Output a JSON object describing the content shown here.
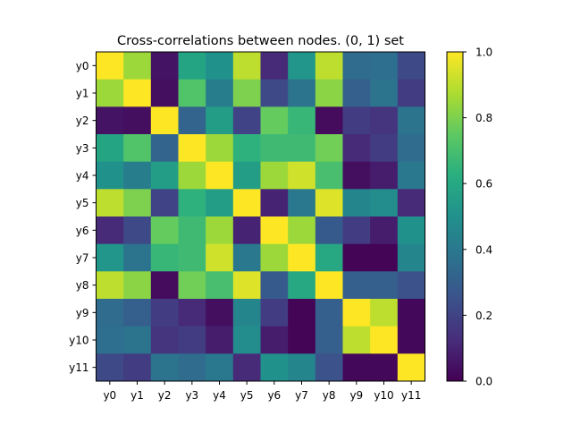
{
  "chart_data": {
    "type": "heatmap",
    "title": "Cross-correlations between nodes. (0, 1) set",
    "xlabel": "",
    "ylabel": "",
    "x_labels": [
      "y0",
      "y1",
      "y2",
      "y3",
      "y4",
      "y5",
      "y6",
      "y7",
      "y8",
      "y9",
      "y10",
      "y11"
    ],
    "y_labels": [
      "y0",
      "y1",
      "y2",
      "y3",
      "y4",
      "y5",
      "y6",
      "y7",
      "y8",
      "y9",
      "y10",
      "y11"
    ],
    "matrix": [
      [
        1.0,
        0.85,
        0.05,
        0.58,
        0.5,
        0.9,
        0.12,
        0.52,
        0.9,
        0.35,
        0.36,
        0.22
      ],
      [
        0.85,
        1.0,
        0.04,
        0.72,
        0.42,
        0.8,
        0.22,
        0.38,
        0.82,
        0.3,
        0.38,
        0.18
      ],
      [
        0.05,
        0.04,
        1.0,
        0.32,
        0.55,
        0.2,
        0.76,
        0.66,
        0.03,
        0.18,
        0.15,
        0.38
      ],
      [
        0.58,
        0.72,
        0.32,
        1.0,
        0.85,
        0.64,
        0.68,
        0.68,
        0.78,
        0.12,
        0.18,
        0.35
      ],
      [
        0.5,
        0.42,
        0.55,
        0.85,
        1.0,
        0.55,
        0.85,
        0.93,
        0.7,
        0.04,
        0.08,
        0.4
      ],
      [
        0.9,
        0.8,
        0.2,
        0.64,
        0.55,
        1.0,
        0.1,
        0.4,
        0.95,
        0.45,
        0.48,
        0.12
      ],
      [
        0.12,
        0.22,
        0.76,
        0.68,
        0.85,
        0.1,
        1.0,
        0.85,
        0.28,
        0.18,
        0.08,
        0.5
      ],
      [
        0.52,
        0.38,
        0.66,
        0.68,
        0.93,
        0.4,
        0.85,
        1.0,
        0.6,
        0.01,
        0.01,
        0.45
      ],
      [
        0.9,
        0.82,
        0.03,
        0.78,
        0.7,
        0.95,
        0.28,
        0.6,
        1.0,
        0.3,
        0.3,
        0.25
      ],
      [
        0.35,
        0.3,
        0.18,
        0.12,
        0.04,
        0.45,
        0.18,
        0.01,
        0.3,
        1.0,
        0.9,
        0.02
      ],
      [
        0.36,
        0.38,
        0.15,
        0.18,
        0.08,
        0.48,
        0.08,
        0.01,
        0.3,
        0.9,
        1.0,
        0.02
      ],
      [
        0.22,
        0.18,
        0.38,
        0.35,
        0.4,
        0.12,
        0.5,
        0.45,
        0.25,
        0.02,
        0.02,
        1.0
      ]
    ],
    "colorbar": {
      "colormap": "viridis",
      "range": [
        0.0,
        1.0
      ],
      "ticks": [
        "0.0",
        "0.2",
        "0.4",
        "0.6",
        "0.8",
        "1.0"
      ]
    }
  }
}
